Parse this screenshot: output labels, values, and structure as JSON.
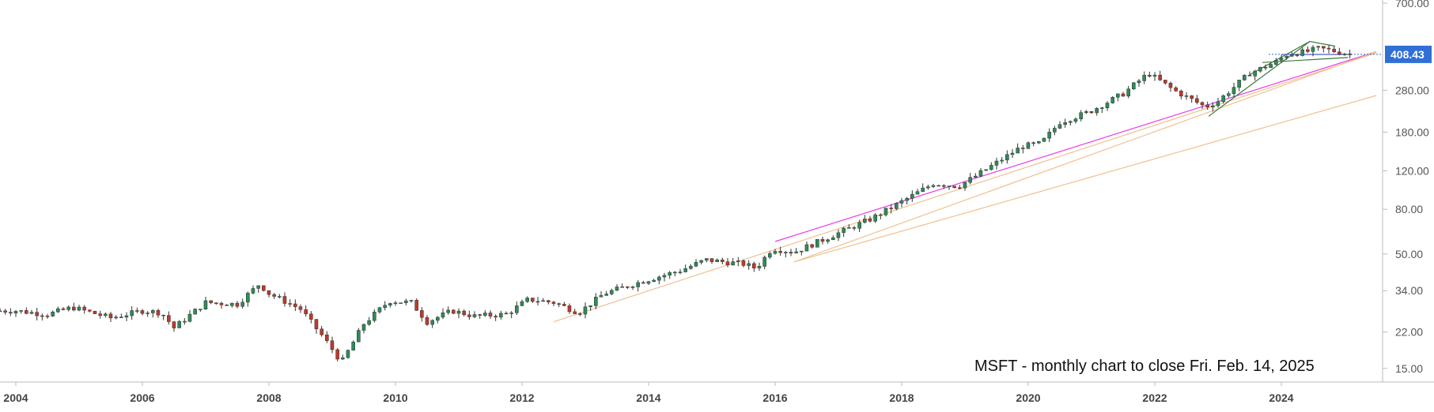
{
  "chart_data": {
    "type": "candlestick",
    "title": "MSFT - monthly chart to close Fri. Feb. 14, 2025",
    "y_scale": "log",
    "ylim": [
      13.0,
      700.0
    ],
    "xlim": [
      2003.75,
      2025.6
    ],
    "y_ticks": [
      15.0,
      22.0,
      34.0,
      50.0,
      80.0,
      120.0,
      180.0,
      280.0,
      700.0
    ],
    "y_tick_labels": [
      "15.00",
      "22.00",
      "34.00",
      "50.00",
      "80.00",
      "120.00",
      "180.00",
      "280.00",
      "700.00"
    ],
    "x_ticks": [
      2004,
      2006,
      2008,
      2010,
      2012,
      2014,
      2016,
      2018,
      2020,
      2022,
      2024
    ],
    "x_tick_labels": [
      "2004",
      "2006",
      "2008",
      "2010",
      "2012",
      "2014",
      "2016",
      "2018",
      "2020",
      "2022",
      "2024"
    ],
    "last_price": 408.43,
    "last_price_label": "408.43",
    "close_anchors": [
      [
        2004.0,
        27.5
      ],
      [
        2004.5,
        26.5
      ],
      [
        2004.9,
        28.5
      ],
      [
        2005.5,
        25.5
      ],
      [
        2006.0,
        27.5
      ],
      [
        2006.3,
        27.0
      ],
      [
        2006.5,
        23.0
      ],
      [
        2007.0,
        30.0
      ],
      [
        2007.5,
        29.5
      ],
      [
        2007.85,
        36.5
      ],
      [
        2008.0,
        33.0
      ],
      [
        2008.5,
        28.0
      ],
      [
        2008.85,
        21.0
      ],
      [
        2009.15,
        16.0
      ],
      [
        2009.5,
        24.0
      ],
      [
        2009.9,
        30.5
      ],
      [
        2010.25,
        30.0
      ],
      [
        2010.5,
        24.5
      ],
      [
        2010.9,
        27.5
      ],
      [
        2011.25,
        26.0
      ],
      [
        2011.75,
        26.5
      ],
      [
        2012.1,
        31.0
      ],
      [
        2012.5,
        30.0
      ],
      [
        2012.9,
        27.0
      ],
      [
        2013.3,
        33.0
      ],
      [
        2013.9,
        37.5
      ],
      [
        2014.5,
        42.0
      ],
      [
        2014.9,
        47.0
      ],
      [
        2015.5,
        45.0
      ],
      [
        2015.7,
        43.0
      ],
      [
        2015.95,
        53.0
      ],
      [
        2016.3,
        51.0
      ],
      [
        2016.75,
        58.0
      ],
      [
        2017.5,
        72.0
      ],
      [
        2017.95,
        85.0
      ],
      [
        2018.5,
        105.0
      ],
      [
        2018.9,
        102.0
      ],
      [
        2019.2,
        115.0
      ],
      [
        2019.9,
        155.0
      ],
      [
        2020.2,
        160.0
      ],
      [
        2020.5,
        200.0
      ],
      [
        2020.95,
        222.0
      ],
      [
        2021.5,
        270.0
      ],
      [
        2021.9,
        335.0
      ],
      [
        2022.3,
        280.0
      ],
      [
        2022.8,
        235.0
      ],
      [
        2023.0,
        250.0
      ],
      [
        2023.5,
        335.0
      ],
      [
        2023.9,
        375.0
      ],
      [
        2024.1,
        410.0
      ],
      [
        2024.4,
        420.0
      ],
      [
        2024.6,
        435.0
      ],
      [
        2024.8,
        425.0
      ],
      [
        2025.12,
        408.43
      ]
    ],
    "trendlines": [
      {
        "color": "#e83be8",
        "points": [
          [
            2016.0,
            57.0
          ],
          [
            2025.5,
            420.0
          ]
        ]
      },
      {
        "color": "#f0c090",
        "points": [
          [
            2012.5,
            24.5
          ],
          [
            2025.5,
            415.0
          ]
        ]
      },
      {
        "color": "#f0c090",
        "points": [
          [
            2016.3,
            46.0
          ],
          [
            2025.5,
            420.0
          ]
        ]
      },
      {
        "color": "#f0c090",
        "points": [
          [
            2016.3,
            46.0
          ],
          [
            2025.5,
            265.0
          ]
        ]
      },
      {
        "color": "#3a7a3a",
        "points": [
          [
            2022.85,
            213.0
          ],
          [
            2024.45,
            468.0
          ]
        ]
      },
      {
        "color": "#3a7a3a",
        "points": [
          [
            2023.5,
            330.0
          ],
          [
            2024.45,
            468.0
          ],
          [
            2024.85,
            445.0
          ]
        ]
      },
      {
        "color": "#3a7a3a",
        "points": [
          [
            2023.7,
            375.0
          ],
          [
            2025.05,
            395.0
          ]
        ]
      },
      {
        "color": "#6a5acd",
        "points": [
          [
            2024.0,
            408.0
          ],
          [
            2025.1,
            408.0
          ]
        ]
      }
    ],
    "colors": {
      "up": "#2e8b57",
      "down": "#c0392b",
      "grid": "#e6e6e6",
      "axis": "#bbbbbb",
      "price_tag": "#2f6fd6"
    }
  }
}
